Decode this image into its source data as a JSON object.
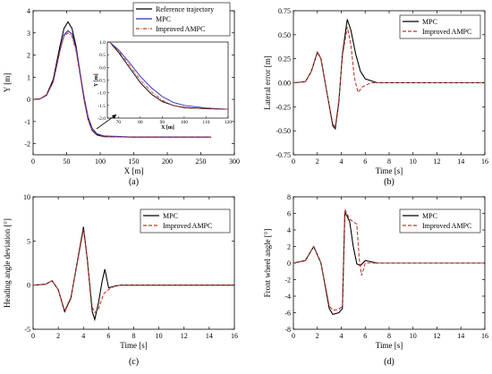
{
  "colors": {
    "reference": "#000000",
    "mpc_a": "#2b2bbf",
    "mpc": "#000000",
    "improved": "#c0392b"
  },
  "chart_data": [
    {
      "type": "line",
      "panel_label": "(a)",
      "xlabel": "X [m]",
      "ylabel": "Y [m]",
      "xlim": [
        0,
        300
      ],
      "ylim": [
        -2.5,
        4
      ],
      "xticks": [
        0,
        50,
        100,
        150,
        200,
        250,
        300
      ],
      "yticks": [
        -2,
        -1,
        0,
        1,
        2,
        3,
        4
      ],
      "legend_position": "top-right",
      "series": [
        {
          "name": "Reference trajectory",
          "style": "solid",
          "color": "#000000",
          "points": [
            [
              0,
              0
            ],
            [
              10,
              0.02
            ],
            [
              20,
              0.2
            ],
            [
              30,
              0.9
            ],
            [
              40,
              2.4
            ],
            [
              46,
              3.2
            ],
            [
              52,
              3.5
            ],
            [
              58,
              3.2
            ],
            [
              64,
              2.4
            ],
            [
              70,
              1.2
            ],
            [
              76,
              0
            ],
            [
              82,
              -0.9
            ],
            [
              88,
              -1.4
            ],
            [
              95,
              -1.6
            ],
            [
              105,
              -1.68
            ],
            [
              150,
              -1.7
            ],
            [
              265,
              -1.7
            ]
          ]
        },
        {
          "name": "MPC",
          "style": "solid",
          "color": "#2b2bbf",
          "points": [
            [
              0,
              0
            ],
            [
              10,
              0.02
            ],
            [
              20,
              0.18
            ],
            [
              30,
              0.8
            ],
            [
              40,
              2.2
            ],
            [
              46,
              2.9
            ],
            [
              52,
              3.1
            ],
            [
              58,
              2.95
            ],
            [
              64,
              2.3
            ],
            [
              70,
              1.2
            ],
            [
              76,
              0.1
            ],
            [
              82,
              -0.8
            ],
            [
              88,
              -1.3
            ],
            [
              95,
              -1.55
            ],
            [
              105,
              -1.65
            ],
            [
              150,
              -1.7
            ],
            [
              265,
              -1.7
            ]
          ]
        },
        {
          "name": "Improved AMPC",
          "style": "dashdot",
          "color": "#c0392b",
          "points": [
            [
              0,
              0
            ],
            [
              10,
              0.02
            ],
            [
              20,
              0.18
            ],
            [
              30,
              0.8
            ],
            [
              40,
              2.2
            ],
            [
              46,
              2.85
            ],
            [
              52,
              3.0
            ],
            [
              58,
              2.85
            ],
            [
              64,
              2.2
            ],
            [
              70,
              1.1
            ],
            [
              76,
              0
            ],
            [
              82,
              -0.9
            ],
            [
              88,
              -1.4
            ],
            [
              95,
              -1.62
            ],
            [
              105,
              -1.68
            ],
            [
              150,
              -1.7
            ],
            [
              265,
              -1.7
            ]
          ]
        }
      ],
      "inset": {
        "xlabel": "X [m]",
        "ylabel": "Y [m]",
        "xlim": [
          65,
          120
        ],
        "ylim": [
          -2,
          1
        ],
        "xticks": [
          70,
          80,
          90,
          100,
          110,
          120
        ],
        "yticks": [
          -2.0,
          -1.5,
          -1.0,
          -0.5,
          0.0,
          0.5,
          1.0
        ],
        "series": [
          {
            "name": "Reference trajectory",
            "points": [
              [
                66,
                1.0
              ],
              [
                70,
                0.6
              ],
              [
                75,
                0
              ],
              [
                80,
                -0.6
              ],
              [
                85,
                -1.05
              ],
              [
                90,
                -1.35
              ],
              [
                95,
                -1.5
              ],
              [
                100,
                -1.58
              ],
              [
                110,
                -1.63
              ],
              [
                120,
                -1.65
              ]
            ]
          },
          {
            "name": "MPC",
            "points": [
              [
                66,
                1.0
              ],
              [
                70,
                0.7
              ],
              [
                75,
                0.2
              ],
              [
                80,
                -0.35
              ],
              [
                85,
                -0.8
              ],
              [
                90,
                -1.15
              ],
              [
                95,
                -1.38
              ],
              [
                100,
                -1.5
              ],
              [
                110,
                -1.6
              ],
              [
                120,
                -1.65
              ]
            ]
          },
          {
            "name": "Improved AMPC",
            "points": [
              [
                66,
                1.0
              ],
              [
                70,
                0.65
              ],
              [
                75,
                0.1
              ],
              [
                80,
                -0.5
              ],
              [
                85,
                -0.95
              ],
              [
                90,
                -1.3
              ],
              [
                95,
                -1.5
              ],
              [
                100,
                -1.6
              ],
              [
                105,
                -1.62
              ],
              [
                110,
                -1.62
              ],
              [
                120,
                -1.65
              ]
            ]
          }
        ]
      }
    },
    {
      "type": "line",
      "panel_label": "(b)",
      "xlabel": "Time [s]",
      "ylabel": "Lateral error [m]",
      "xlim": [
        0,
        16
      ],
      "ylim": [
        -0.75,
        0.75
      ],
      "xticks": [
        0,
        2,
        4,
        6,
        8,
        10,
        12,
        14,
        16
      ],
      "yticks": [
        -0.75,
        -0.5,
        -0.25,
        0.0,
        0.25,
        0.5,
        0.75
      ],
      "legend_position": "top-right",
      "series": [
        {
          "name": "MPC",
          "style": "solid",
          "color": "#000000",
          "points": [
            [
              0,
              0
            ],
            [
              1,
              0.01
            ],
            [
              1.5,
              0.12
            ],
            [
              2,
              0.32
            ],
            [
              2.3,
              0.25
            ],
            [
              2.8,
              -0.1
            ],
            [
              3.3,
              -0.45
            ],
            [
              3.5,
              -0.48
            ],
            [
              3.8,
              -0.2
            ],
            [
              4.1,
              0.3
            ],
            [
              4.5,
              0.66
            ],
            [
              4.8,
              0.55
            ],
            [
              5.2,
              0.3
            ],
            [
              5.6,
              0.12
            ],
            [
              6,
              0.04
            ],
            [
              7,
              0
            ],
            [
              16,
              0
            ]
          ]
        },
        {
          "name": "Improved AMPC",
          "style": "dashed",
          "color": "#c0392b",
          "points": [
            [
              0,
              0
            ],
            [
              1,
              0.01
            ],
            [
              1.5,
              0.12
            ],
            [
              2,
              0.32
            ],
            [
              2.3,
              0.25
            ],
            [
              2.8,
              -0.1
            ],
            [
              3.3,
              -0.43
            ],
            [
              3.5,
              -0.46
            ],
            [
              3.8,
              -0.18
            ],
            [
              4.1,
              0.28
            ],
            [
              4.5,
              0.58
            ],
            [
              4.8,
              0.4
            ],
            [
              5.1,
              0.05
            ],
            [
              5.4,
              -0.1
            ],
            [
              5.8,
              -0.04
            ],
            [
              6.5,
              0
            ],
            [
              16,
              0
            ]
          ]
        }
      ]
    },
    {
      "type": "line",
      "panel_label": "(c)",
      "xlabel": "Time [s]",
      "ylabel": "Heading angle deviation [°]",
      "xlim": [
        0,
        16
      ],
      "ylim": [
        -5,
        10
      ],
      "xticks": [
        0,
        2,
        4,
        6,
        8,
        10,
        12,
        14,
        16
      ],
      "yticks": [
        -5,
        0,
        5,
        10
      ],
      "legend_position": "top-right",
      "series": [
        {
          "name": "MPC",
          "style": "solid",
          "color": "#000000",
          "points": [
            [
              0,
              0
            ],
            [
              1,
              0.1
            ],
            [
              1.5,
              0.5
            ],
            [
              2,
              -0.5
            ],
            [
              2.5,
              -3
            ],
            [
              3,
              -1.5
            ],
            [
              3.5,
              2.5
            ],
            [
              4,
              6.6
            ],
            [
              4.3,
              3
            ],
            [
              4.7,
              -3
            ],
            [
              4.9,
              -3.9
            ],
            [
              5.2,
              -2
            ],
            [
              5.5,
              0.5
            ],
            [
              5.7,
              1.8
            ],
            [
              6,
              -0.3
            ],
            [
              6.5,
              -0.1
            ],
            [
              7,
              0
            ],
            [
              16,
              0
            ]
          ]
        },
        {
          "name": "Improved AMPC",
          "style": "dashed",
          "color": "#c0392b",
          "points": [
            [
              0,
              0
            ],
            [
              1,
              0.1
            ],
            [
              1.5,
              0.5
            ],
            [
              2,
              -0.5
            ],
            [
              2.5,
              -2.9
            ],
            [
              3,
              -1.4
            ],
            [
              3.5,
              2.4
            ],
            [
              4,
              6.3
            ],
            [
              4.3,
              3
            ],
            [
              4.7,
              -2.5
            ],
            [
              4.9,
              -3.1
            ],
            [
              5.2,
              -2.7
            ],
            [
              5.6,
              -1
            ],
            [
              6,
              -0.5
            ],
            [
              6.5,
              -0.1
            ],
            [
              7,
              0
            ],
            [
              16,
              0
            ]
          ]
        }
      ]
    },
    {
      "type": "line",
      "panel_label": "(d)",
      "xlabel": "Time [s]",
      "ylabel": "Front wheel angle [°]",
      "xlim": [
        0,
        16
      ],
      "ylim": [
        -8,
        8
      ],
      "xticks": [
        0,
        2,
        4,
        6,
        8,
        10,
        12,
        14,
        16
      ],
      "yticks": [
        -8,
        -6,
        -4,
        -2,
        0,
        2,
        4,
        6,
        8
      ],
      "legend_position": "top-right",
      "series": [
        {
          "name": "MPC",
          "style": "solid",
          "color": "#000000",
          "points": [
            [
              0,
              0
            ],
            [
              1,
              0.3
            ],
            [
              1.7,
              2
            ],
            [
              2.3,
              0
            ],
            [
              3,
              -5.5
            ],
            [
              3.3,
              -6.2
            ],
            [
              3.8,
              -6
            ],
            [
              4.1,
              -5.5
            ],
            [
              4.3,
              6.2
            ],
            [
              4.7,
              5
            ],
            [
              5,
              2
            ],
            [
              5.3,
              -0.1
            ],
            [
              5.6,
              -0.3
            ],
            [
              6,
              0.3
            ],
            [
              7,
              0
            ],
            [
              16,
              0
            ]
          ]
        },
        {
          "name": "Improved AMPC",
          "style": "dashed",
          "color": "#c0392b",
          "points": [
            [
              0,
              0
            ],
            [
              1,
              0.3
            ],
            [
              1.7,
              2
            ],
            [
              2.3,
              0
            ],
            [
              3,
              -5.2
            ],
            [
              3.3,
              -5.7
            ],
            [
              3.8,
              -5.6
            ],
            [
              4.1,
              -5.2
            ],
            [
              4.3,
              6.5
            ],
            [
              4.7,
              5.3
            ],
            [
              5.3,
              4.7
            ],
            [
              5.5,
              0.5
            ],
            [
              5.7,
              -1.5
            ],
            [
              6,
              0
            ],
            [
              7,
              0
            ],
            [
              16,
              0
            ]
          ]
        }
      ]
    }
  ]
}
